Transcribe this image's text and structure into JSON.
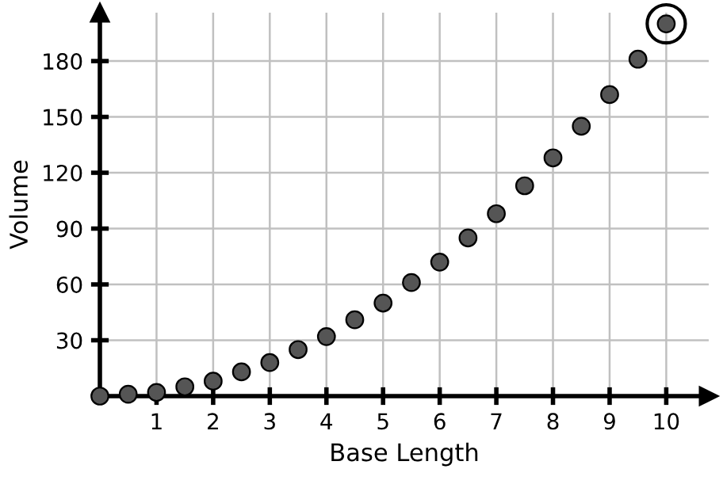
{
  "chart_data": {
    "type": "scatter",
    "xlabel": "Base Length",
    "ylabel": "Volume",
    "xlim": [
      0,
      10.75
    ],
    "ylim": [
      0,
      206
    ],
    "xticks": [
      1,
      2,
      3,
      4,
      5,
      6,
      7,
      8,
      9,
      10
    ],
    "yticks": [
      30,
      60,
      90,
      120,
      150,
      180
    ],
    "grid": true,
    "marker": "circle",
    "series": [
      {
        "color": "#555555",
        "x": [
          0,
          0.5,
          1,
          1.5,
          2,
          2.5,
          3,
          3.5,
          4,
          4.5,
          5,
          5.5,
          6,
          6.5,
          7,
          7.5,
          8,
          8.5,
          9,
          9.5,
          10
        ],
        "values": [
          0,
          1,
          2,
          5,
          8,
          13,
          18,
          25,
          32,
          41,
          50,
          61,
          72,
          85,
          98,
          113,
          128,
          145,
          162,
          181,
          200
        ]
      },
      {
        "color": "#000000",
        "x": [
          10
        ],
        "values": [
          200
        ]
      }
    ]
  }
}
